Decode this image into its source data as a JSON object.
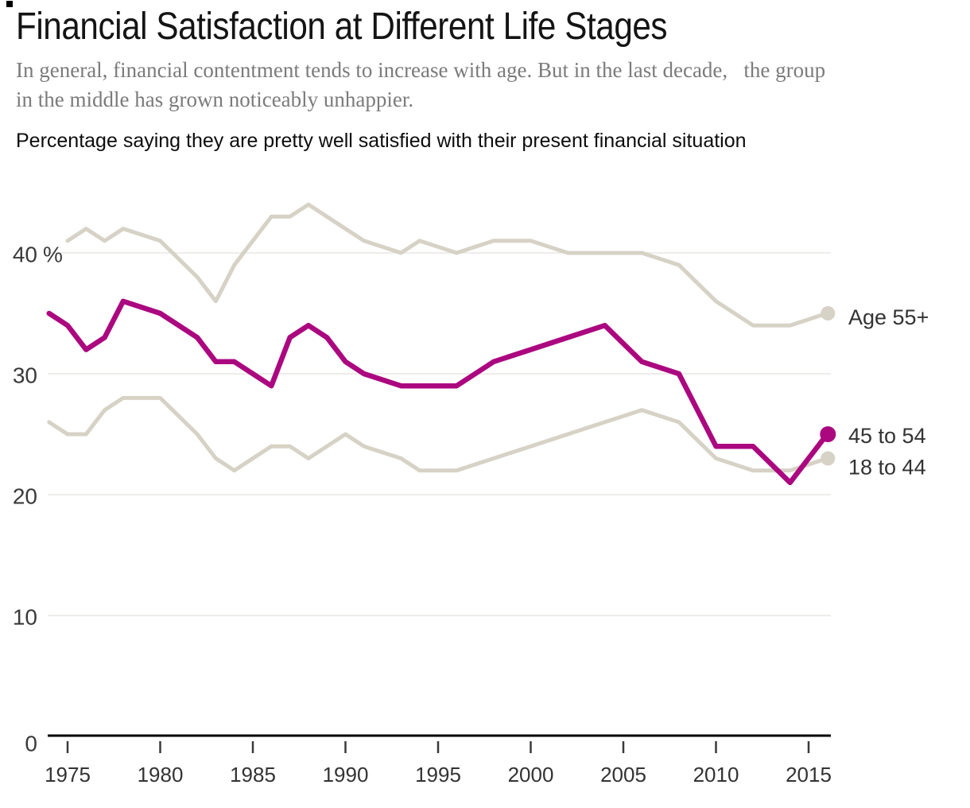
{
  "chart_data": {
    "type": "line",
    "title": "Financial Satisfaction at Different Life Stages",
    "subtitle_line1": "In general, financial contentment tends to increase with age. But in the last decade,   the group",
    "subtitle_line2": "in the middle has grown noticeably unhappier.",
    "note": "Percentage saying they are pretty well satisfied with their present financial situation",
    "x_ticks": [
      1975,
      1980,
      1985,
      1990,
      1995,
      2000,
      2005,
      2010,
      2015
    ],
    "y_ticks": [
      0,
      10,
      20,
      30,
      40
    ],
    "y_tick_labels": [
      "0",
      "10",
      "20",
      "30",
      "40 %"
    ],
    "xlim": [
      1974,
      2016
    ],
    "ylim": [
      0,
      46
    ],
    "grid": "horizontal",
    "legend_position": "right-end-of-lines",
    "colors": {
      "grid": "#e8e7e3",
      "axis": "#000000",
      "tick": "#3a3a3a",
      "label_text": "#333333",
      "gray_series": "#d6d2c5",
      "accent_series": "#ab0880"
    },
    "series": [
      {
        "name": "Age 55+",
        "color": "#d6d2c5",
        "emphasis": false,
        "years": [
          1975,
          1976,
          1977,
          1978,
          1980,
          1982,
          1983,
          1984,
          1985,
          1986,
          1987,
          1988,
          1989,
          1990,
          1991,
          1993,
          1994,
          1996,
          1998,
          2000,
          2002,
          2004,
          2006,
          2008,
          2010,
          2012,
          2014,
          2016
        ],
        "values": [
          41,
          42,
          41,
          42,
          41,
          38,
          36,
          39,
          41,
          43,
          43,
          44,
          43,
          42,
          41,
          40,
          41,
          40,
          41,
          41,
          40,
          40,
          40,
          39,
          36,
          34,
          34,
          35
        ]
      },
      {
        "name": "18 to 44",
        "color": "#d6d2c5",
        "emphasis": false,
        "years": [
          1974,
          1975,
          1976,
          1977,
          1978,
          1980,
          1982,
          1983,
          1984,
          1985,
          1986,
          1987,
          1988,
          1989,
          1990,
          1991,
          1993,
          1994,
          1996,
          1998,
          2000,
          2002,
          2004,
          2006,
          2008,
          2010,
          2012,
          2014,
          2016
        ],
        "values": [
          26,
          25,
          25,
          27,
          28,
          28,
          25,
          23,
          22,
          23,
          24,
          24,
          23,
          24,
          25,
          24,
          23,
          22,
          22,
          23,
          24,
          25,
          26,
          27,
          26,
          23,
          22,
          22,
          23
        ]
      },
      {
        "name": "45 to 54",
        "color": "#ab0880",
        "emphasis": true,
        "years": [
          1974,
          1975,
          1976,
          1977,
          1978,
          1980,
          1982,
          1983,
          1984,
          1985,
          1986,
          1987,
          1988,
          1989,
          1990,
          1991,
          1993,
          1994,
          1996,
          1998,
          2000,
          2002,
          2004,
          2006,
          2008,
          2010,
          2012,
          2014,
          2016
        ],
        "values": [
          35,
          34,
          32,
          33,
          36,
          35,
          33,
          31,
          31,
          30,
          29,
          33,
          34,
          33,
          31,
          30,
          29,
          29,
          29,
          31,
          32,
          33,
          34,
          31,
          30,
          24,
          24,
          21,
          25
        ]
      }
    ]
  }
}
